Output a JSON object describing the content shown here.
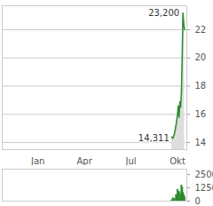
{
  "chart_data": [
    {
      "type": "line",
      "x": [
        8.62,
        8.7,
        8.8,
        8.9,
        9.0,
        9.05,
        9.1,
        9.15,
        9.2,
        9.25,
        9.3,
        9.35,
        9.4,
        9.45
      ],
      "values": [
        14.4,
        14.311,
        14.6,
        15.2,
        16.0,
        16.6,
        15.8,
        16.9,
        16.5,
        17.5,
        20.0,
        23.2,
        22.5,
        22.0
      ],
      "color": "#2e8b2e",
      "xlim": [
        -2.3,
        9.6
      ],
      "xticks": [
        {
          "value": 0,
          "label": "Jan"
        },
        {
          "value": 3,
          "label": "Apr"
        },
        {
          "value": 6,
          "label": "Jul"
        },
        {
          "value": 9,
          "label": "Okt"
        }
      ],
      "ylim": [
        13.5,
        23.7
      ],
      "yticks": [
        14,
        16,
        18,
        20,
        22
      ],
      "grid": true,
      "annotations": [
        {
          "text": "23,200",
          "x": 9.35,
          "y": 23.2
        },
        {
          "text": "14,311",
          "x": 8.7,
          "y": 14.311
        }
      ]
    },
    {
      "type": "bar",
      "x": [
        8.62,
        8.7,
        8.8,
        8.9,
        9.0,
        9.05,
        9.1,
        9.15,
        9.2,
        9.25,
        9.3,
        9.35,
        9.4,
        9.45
      ],
      "values": [
        120,
        300,
        250,
        600,
        1100,
        500,
        900,
        400,
        700,
        1500,
        1300,
        800,
        600,
        400
      ],
      "color": "#2e8b2e",
      "xlim": [
        -2.3,
        9.6
      ],
      "ylim": [
        0,
        3000
      ],
      "yticks": [
        0,
        1250,
        2500
      ],
      "tick_labels": "y"
    }
  ]
}
